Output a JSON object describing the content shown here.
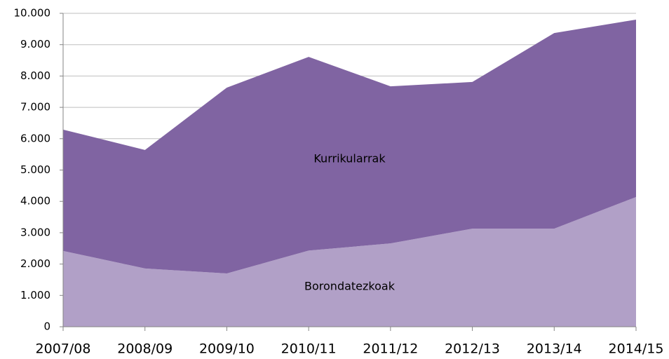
{
  "chart_data": {
    "type": "stacked_area",
    "categories": [
      "2007/08",
      "2008/09",
      "2009/10",
      "2010/11",
      "2011/12",
      "2012/13",
      "2013/14",
      "2014/15"
    ],
    "series": [
      {
        "name": "Borondatezkoak",
        "color": "#b1a0c7",
        "values": [
          2420,
          1860,
          1700,
          2430,
          2660,
          3130,
          3130,
          4140
        ]
      },
      {
        "name": "Kurrikularrak",
        "color": "#8064a2",
        "values": [
          3870,
          3780,
          5930,
          6180,
          5010,
          4680,
          6240,
          5660
        ]
      }
    ],
    "ylim": [
      0,
      10000
    ],
    "yticks": [
      0,
      {
        "value": 1000,
        "label": "1.000"
      },
      {
        "value": 2000,
        "label": "2.000"
      },
      {
        "value": 3000,
        "label": "3.000"
      },
      {
        "value": 4000,
        "label": "4.000"
      },
      {
        "value": 5000,
        "label": "5.000"
      },
      {
        "value": 6000,
        "label": "6.000"
      },
      {
        "value": 7000,
        "label": "7.000"
      },
      {
        "value": 8000,
        "label": "8.000"
      },
      {
        "value": 9000,
        "label": "9.000"
      },
      {
        "value": 10000,
        "label": "10.000"
      }
    ],
    "grid": true
  }
}
